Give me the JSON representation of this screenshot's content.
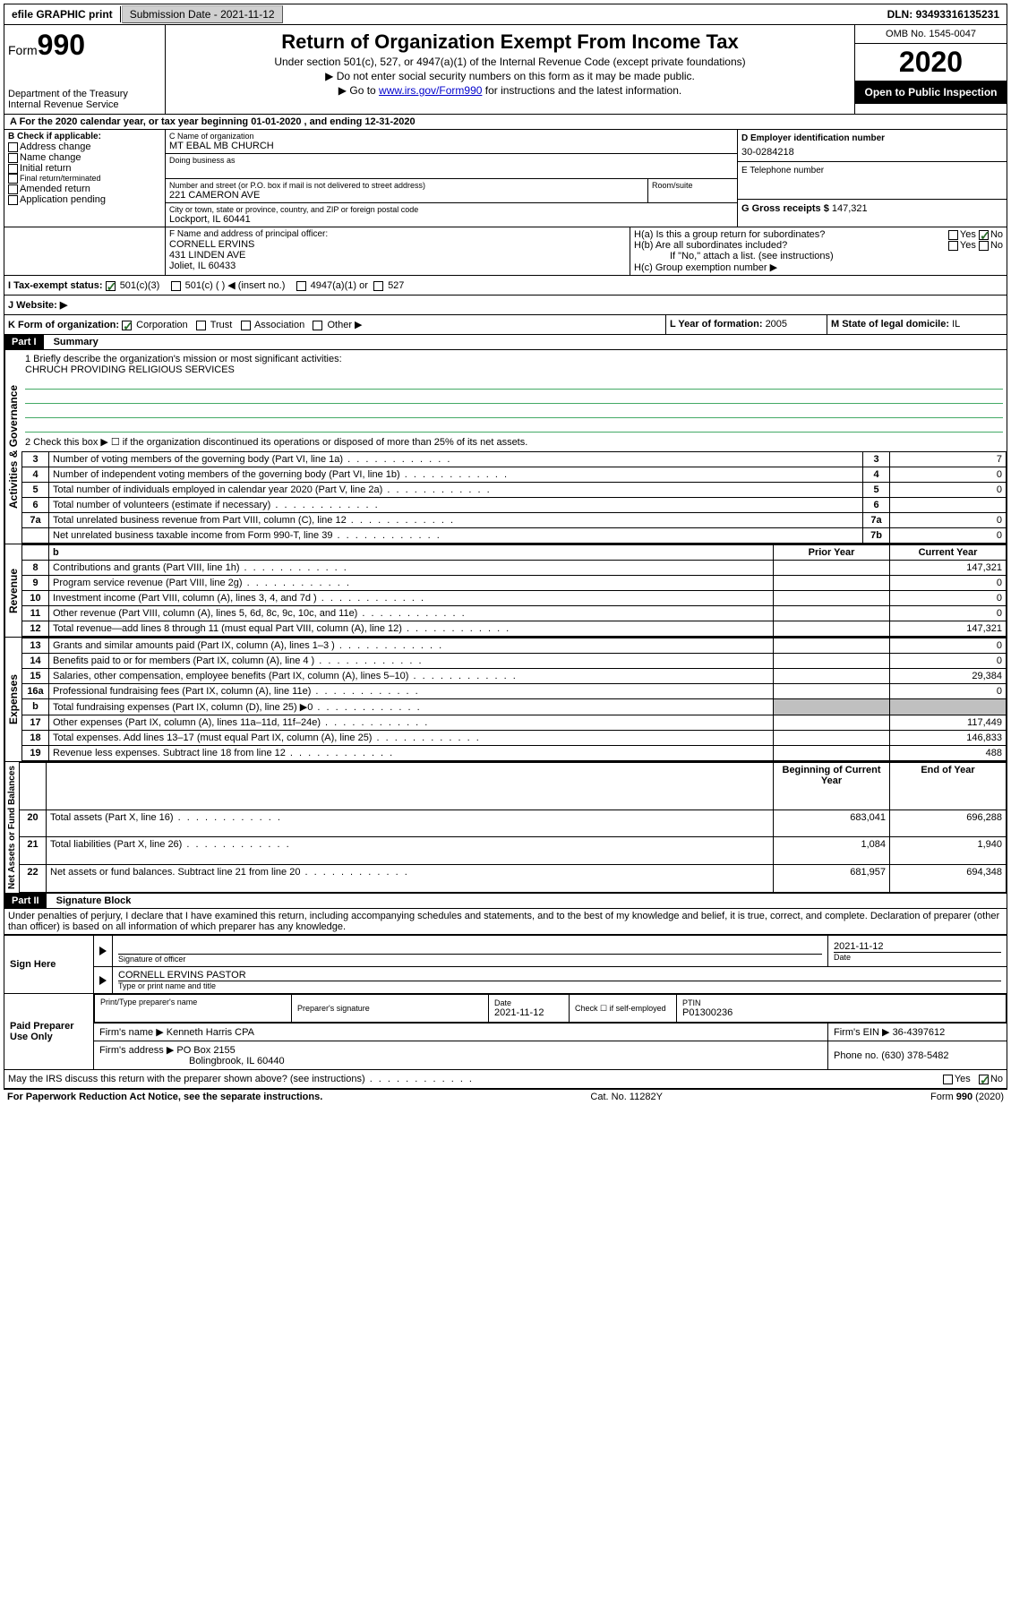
{
  "topbar": {
    "efile": "efile GRAPHIC print",
    "submission_label": "Submission Date - ",
    "submission_date": "2021-11-12",
    "dln_label": "DLN: ",
    "dln": "93493316135231"
  },
  "header": {
    "form_prefix": "Form",
    "form_number": "990",
    "dept": "Department of the Treasury",
    "irs": "Internal Revenue Service",
    "title": "Return of Organization Exempt From Income Tax",
    "subtitle": "Under section 501(c), 527, or 4947(a)(1) of the Internal Revenue Code (except private foundations)",
    "note1": "▶ Do not enter social security numbers on this form as it may be made public.",
    "note2_prefix": "▶ Go to ",
    "note2_link": "www.irs.gov/Form990",
    "note2_suffix": " for instructions and the latest information.",
    "omb": "OMB No. 1545-0047",
    "year": "2020",
    "open_public": "Open to Public Inspection"
  },
  "row_a": "A For the 2020 calendar year, or tax year beginning 01-01-2020    , and ending 12-31-2020",
  "box_b": {
    "label": "B Check if applicable:",
    "items": [
      "Address change",
      "Name change",
      "Initial return",
      "Final return/terminated",
      "Amended return",
      "Application pending"
    ]
  },
  "box_c": {
    "name_label": "C Name of organization",
    "name": "MT EBAL MB CHURCH",
    "dba_label": "Doing business as",
    "dba": "",
    "street_label": "Number and street (or P.O. box if mail is not delivered to street address)",
    "street": "221 CAMERON AVE",
    "room_label": "Room/suite",
    "city_label": "City or town, state or province, country, and ZIP or foreign postal code",
    "city": "Lockport, IL  60441"
  },
  "box_d": {
    "label": "D Employer identification number",
    "value": "30-0284218"
  },
  "box_e": {
    "label": "E Telephone number",
    "value": ""
  },
  "box_g": {
    "label": "G Gross receipts $ ",
    "value": "147,321"
  },
  "box_f": {
    "label": "F  Name and address of principal officer:",
    "name": "CORNELL ERVINS",
    "street": "431 LINDEN AVE",
    "city": "Joliet, IL  60433"
  },
  "box_h": {
    "a_label": "H(a)  Is this a group return for subordinates?",
    "b_label": "H(b)  Are all subordinates included?",
    "b_note": "If \"No,\" attach a list. (see instructions)",
    "c_label": "H(c)  Group exemption number ▶",
    "yes": "Yes",
    "no": "No"
  },
  "box_i": {
    "label": "I  Tax-exempt status:",
    "opts": [
      "501(c)(3)",
      "501(c) (   ) ◀ (insert no.)",
      "4947(a)(1) or",
      "527"
    ]
  },
  "box_j": {
    "label": "J  Website: ▶"
  },
  "box_k": {
    "label": "K Form of organization:",
    "opts": [
      "Corporation",
      "Trust",
      "Association",
      "Other ▶"
    ]
  },
  "box_l": {
    "label": "L Year of formation: ",
    "value": "2005"
  },
  "box_m": {
    "label": "M State of legal domicile: ",
    "value": "IL"
  },
  "part1": {
    "header": "Part I",
    "title": "Summary",
    "line1_label": "1  Briefly describe the organization's mission or most significant activities:",
    "line1_value": "CHRUCH PROVIDING RELIGIOUS SERVICES",
    "line2": "2     Check this box ▶ ☐  if the organization discontinued its operations or disposed of more than 25% of its net assets.",
    "sections": {
      "governance": "Activities & Governance",
      "revenue": "Revenue",
      "expenses": "Expenses",
      "netassets": "Net Assets or Fund Balances"
    },
    "gov_rows": [
      {
        "n": "3",
        "t": "Number of voting members of the governing body (Part VI, line 1a)",
        "k": "3",
        "v": "7"
      },
      {
        "n": "4",
        "t": "Number of independent voting members of the governing body (Part VI, line 1b)",
        "k": "4",
        "v": "0"
      },
      {
        "n": "5",
        "t": "Total number of individuals employed in calendar year 2020 (Part V, line 2a)",
        "k": "5",
        "v": "0"
      },
      {
        "n": "6",
        "t": "Total number of volunteers (estimate if necessary)",
        "k": "6",
        "v": ""
      },
      {
        "n": "7a",
        "t": "Total unrelated business revenue from Part VIII, column (C), line 12",
        "k": "7a",
        "v": "0"
      },
      {
        "n": "",
        "t": "Net unrelated business taxable income from Form 990-T, line 39",
        "k": "7b",
        "v": "0"
      }
    ],
    "col_headers": {
      "b": "b",
      "prior": "Prior Year",
      "current": "Current Year"
    },
    "rev_rows": [
      {
        "n": "8",
        "t": "Contributions and grants (Part VIII, line 1h)",
        "p": "",
        "c": "147,321"
      },
      {
        "n": "9",
        "t": "Program service revenue (Part VIII, line 2g)",
        "p": "",
        "c": "0"
      },
      {
        "n": "10",
        "t": "Investment income (Part VIII, column (A), lines 3, 4, and 7d )",
        "p": "",
        "c": "0"
      },
      {
        "n": "11",
        "t": "Other revenue (Part VIII, column (A), lines 5, 6d, 8c, 9c, 10c, and 11e)",
        "p": "",
        "c": "0"
      },
      {
        "n": "12",
        "t": "Total revenue—add lines 8 through 11 (must equal Part VIII, column (A), line 12)",
        "p": "",
        "c": "147,321"
      }
    ],
    "exp_rows": [
      {
        "n": "13",
        "t": "Grants and similar amounts paid (Part IX, column (A), lines 1–3 )",
        "p": "",
        "c": "0"
      },
      {
        "n": "14",
        "t": "Benefits paid to or for members (Part IX, column (A), line 4 )",
        "p": "",
        "c": "0"
      },
      {
        "n": "15",
        "t": "Salaries, other compensation, employee benefits (Part IX, column (A), lines 5–10)",
        "p": "",
        "c": "29,384"
      },
      {
        "n": "16a",
        "t": "Professional fundraising fees (Part IX, column (A), line 11e)",
        "p": "",
        "c": "0"
      },
      {
        "n": "b",
        "t": "Total fundraising expenses (Part IX, column (D), line 25) ▶0",
        "p": "SHADE",
        "c": "SHADE"
      },
      {
        "n": "17",
        "t": "Other expenses (Part IX, column (A), lines 11a–11d, 11f–24e)",
        "p": "",
        "c": "117,449"
      },
      {
        "n": "18",
        "t": "Total expenses. Add lines 13–17 (must equal Part IX, column (A), line 25)",
        "p": "",
        "c": "146,833"
      },
      {
        "n": "19",
        "t": "Revenue less expenses. Subtract line 18 from line 12",
        "p": "",
        "c": "488"
      }
    ],
    "net_headers": {
      "begin": "Beginning of Current Year",
      "end": "End of Year"
    },
    "net_rows": [
      {
        "n": "20",
        "t": "Total assets (Part X, line 16)",
        "p": "683,041",
        "c": "696,288"
      },
      {
        "n": "21",
        "t": "Total liabilities (Part X, line 26)",
        "p": "1,084",
        "c": "1,940"
      },
      {
        "n": "22",
        "t": "Net assets or fund balances. Subtract line 21 from line 20",
        "p": "681,957",
        "c": "694,348"
      }
    ]
  },
  "part2": {
    "header": "Part II",
    "title": "Signature Block",
    "declaration": "Under penalties of perjury, I declare that I have examined this return, including accompanying schedules and statements, and to the best of my knowledge and belief, it is true, correct, and complete. Declaration of preparer (other than officer) is based on all information of which preparer has any knowledge.",
    "sign_here": "Sign Here",
    "sig_officer": "Signature of officer",
    "sig_date_label": "Date",
    "sig_date": "2021-11-12",
    "officer_name": "CORNELL ERVINS PASTOR",
    "type_print": "Type or print name and title",
    "paid_prep": "Paid Preparer Use Only",
    "prep_name_label": "Print/Type preparer's name",
    "prep_sig_label": "Preparer's signature",
    "prep_date_label": "Date",
    "prep_date": "2021-11-12",
    "check_self": "Check ☐ if self-employed",
    "ptin_label": "PTIN",
    "ptin": "P01300236",
    "firm_name_label": "Firm's name      ▶ ",
    "firm_name": "Kenneth Harris CPA",
    "firm_ein_label": "Firm's EIN ▶ ",
    "firm_ein": "36-4397612",
    "firm_addr_label": "Firm's address ▶ ",
    "firm_addr1": "PO Box 2155",
    "firm_addr2": "Bolingbrook, IL  60440",
    "phone_label": "Phone no. ",
    "phone": "(630) 378-5482",
    "discuss": "May the IRS discuss this return with the preparer shown above? (see instructions)",
    "yes": "Yes",
    "no": "No"
  },
  "footer": {
    "left": "For Paperwork Reduction Act Notice, see the separate instructions.",
    "center": "Cat. No. 11282Y",
    "right": "Form 990 (2020)"
  }
}
